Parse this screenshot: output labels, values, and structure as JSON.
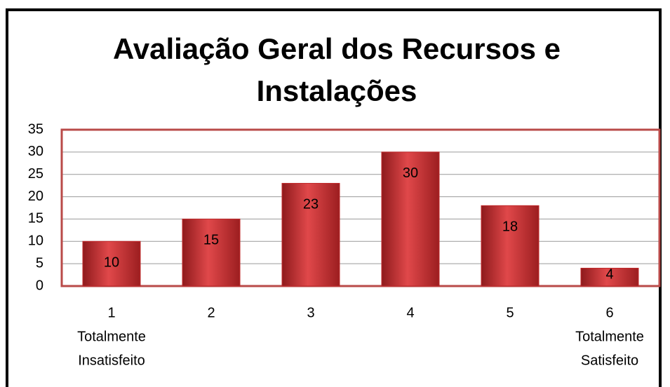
{
  "chart_data": {
    "type": "bar",
    "title": "Avaliação Geral dos Recursos e Instalações",
    "categories": [
      [
        "1",
        "Totalmente",
        "Insatisfeito"
      ],
      [
        "2"
      ],
      [
        "3"
      ],
      [
        "4"
      ],
      [
        "5"
      ],
      [
        "6",
        "Totalmente",
        "Satisfeito"
      ]
    ],
    "values": [
      10,
      15,
      23,
      30,
      18,
      4
    ],
    "color": "#c0282a",
    "ylim": [
      0,
      35
    ],
    "yticks": [
      0,
      5,
      10,
      15,
      20,
      25,
      30,
      35
    ],
    "grid": true
  }
}
